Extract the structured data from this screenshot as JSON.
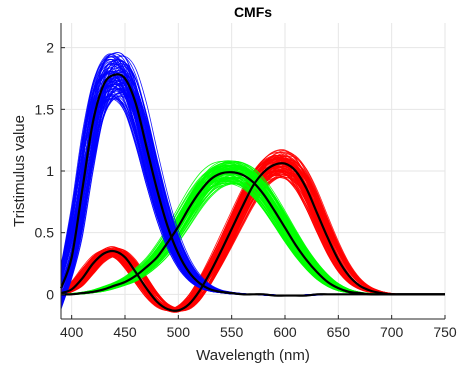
{
  "chart_data": {
    "type": "line",
    "title": "CMFs",
    "xlabel": "Wavelength (nm)",
    "ylabel": "Tristimulus value",
    "xlim": [
      390,
      750
    ],
    "ylim": [
      -0.2,
      2.2
    ],
    "xticks": [
      400,
      450,
      500,
      550,
      600,
      650,
      700,
      750
    ],
    "yticks": [
      0,
      0.5,
      1,
      1.5,
      2
    ],
    "xtick_labels": [
      "400",
      "450",
      "500",
      "550",
      "600",
      "650",
      "700",
      "750"
    ],
    "ytick_labels": [
      "0",
      "0.5",
      "1",
      "1.5",
      "2"
    ],
    "grid": true,
    "colors": {
      "red_band": "#ff0000",
      "green_band": "#00ff00",
      "blue_band": "#0000ff",
      "mean_curve": "#000000"
    },
    "x": [
      390,
      400,
      410,
      420,
      430,
      440,
      450,
      460,
      470,
      480,
      490,
      500,
      510,
      520,
      530,
      540,
      550,
      560,
      570,
      580,
      590,
      600,
      610,
      620,
      630,
      640,
      650,
      660,
      670,
      680,
      690,
      700,
      710,
      720,
      730,
      740,
      750
    ],
    "series": [
      {
        "color_key": "red_band",
        "values": [
          0.01,
          0.04,
          0.13,
          0.25,
          0.33,
          0.35,
          0.3,
          0.18,
          0.05,
          -0.06,
          -0.12,
          -0.13,
          -0.08,
          0.03,
          0.18,
          0.35,
          0.53,
          0.71,
          0.88,
          0.99,
          1.05,
          1.06,
          1.0,
          0.86,
          0.66,
          0.46,
          0.28,
          0.15,
          0.07,
          0.03,
          0.01,
          0.0,
          0.0,
          0.0,
          0.0,
          0.0,
          0.0
        ],
        "spread": 0.07
      },
      {
        "color_key": "green_band",
        "values": [
          0.0,
          0.0,
          0.01,
          0.02,
          0.04,
          0.07,
          0.1,
          0.15,
          0.22,
          0.3,
          0.42,
          0.55,
          0.7,
          0.83,
          0.93,
          0.98,
          0.99,
          0.97,
          0.91,
          0.81,
          0.68,
          0.54,
          0.4,
          0.28,
          0.18,
          0.1,
          0.05,
          0.02,
          0.01,
          0.0,
          0.0,
          0.0,
          0.0,
          0.0,
          0.0,
          0.0,
          0.0
        ],
        "spread": 0.06
      },
      {
        "color_key": "blue_band",
        "values": [
          0.05,
          0.3,
          0.85,
          1.4,
          1.7,
          1.78,
          1.75,
          1.55,
          1.2,
          0.85,
          0.55,
          0.33,
          0.18,
          0.09,
          0.04,
          0.02,
          0.01,
          0.0,
          0.0,
          0.0,
          -0.01,
          -0.01,
          -0.01,
          -0.01,
          0.0,
          0.0,
          0.0,
          0.0,
          0.0,
          0.0,
          0.0,
          0.0,
          0.0,
          0.0,
          0.0,
          0.0,
          0.0
        ],
        "spread": 0.12
      }
    ]
  }
}
